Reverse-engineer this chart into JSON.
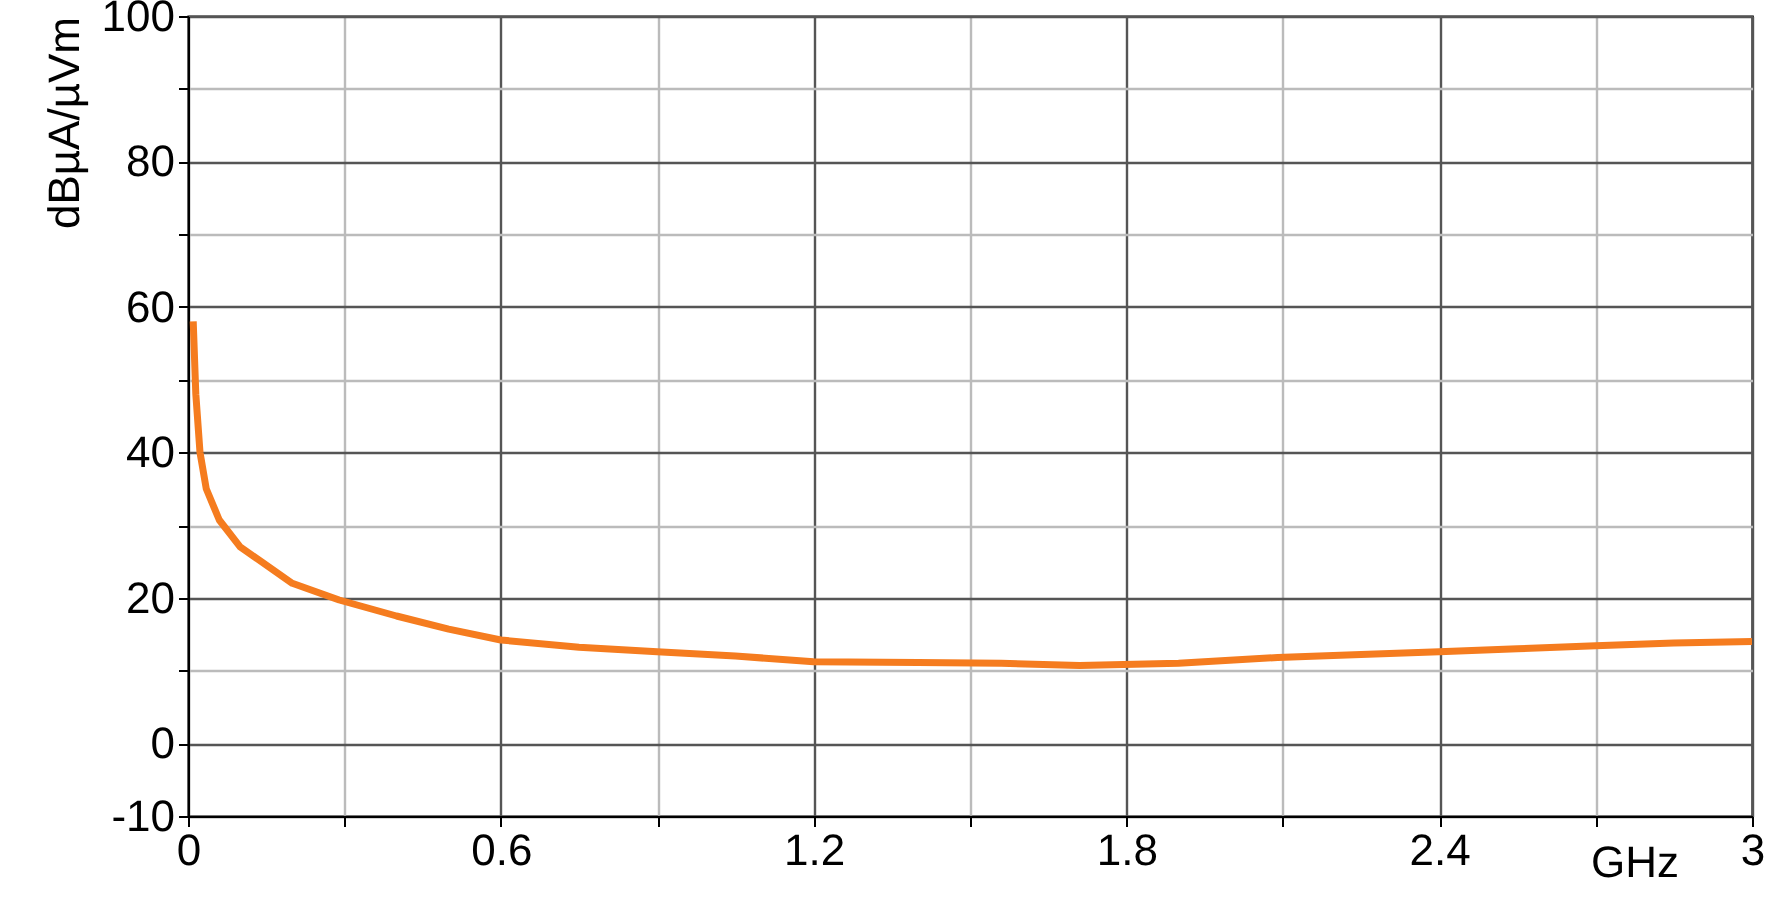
{
  "chart_data": {
    "type": "line",
    "xlabel": "GHz",
    "ylabel": "dBµA/µVm",
    "x": [
      0.01,
      0.015,
      0.023,
      0.035,
      0.06,
      0.1,
      0.14,
      0.2,
      0.29,
      0.4,
      0.5,
      0.6,
      0.75,
      0.9,
      1.05,
      1.2,
      1.4,
      1.56,
      1.71,
      1.9,
      2.09,
      2.25,
      2.4,
      2.55,
      2.7,
      2.85,
      3.0
    ],
    "series": [
      {
        "color": "#f57c1f",
        "values": [
          58,
          48,
          40,
          35,
          30.7,
          27,
          25,
          22,
          19.7,
          17.5,
          15.7,
          14.2,
          13.2,
          12.6,
          12,
          11.2,
          11.1,
          11,
          10.7,
          11,
          11.8,
          12.2,
          12.6,
          13,
          13.4,
          13.8,
          14
        ]
      }
    ],
    "xlim": [
      0,
      3
    ],
    "ylim": [
      -10,
      100
    ],
    "xticks": [
      0,
      {
        "value": 0.3,
        "label": null
      },
      0.6,
      {
        "value": 0.9,
        "label": null
      },
      1.2,
      {
        "value": 1.5,
        "label": null
      },
      1.8,
      {
        "value": 2.1,
        "label": null
      },
      2.4,
      {
        "value": 2.7,
        "label": null
      },
      3
    ],
    "yticks": [
      -10,
      0,
      {
        "value": 10,
        "label": null
      },
      20,
      {
        "value": 30,
        "label": null
      },
      40,
      {
        "value": 50,
        "label": null
      },
      60,
      {
        "value": 70,
        "label": null
      },
      80,
      {
        "value": 90,
        "label": null
      },
      100
    ],
    "grid": true,
    "marker": "none",
    "line_style": "solid"
  }
}
